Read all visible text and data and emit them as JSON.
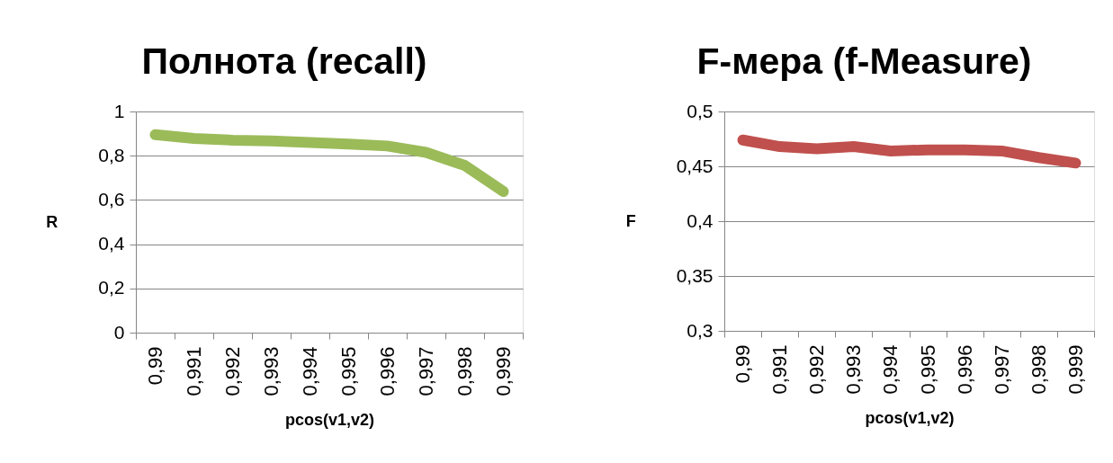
{
  "chart_data": [
    {
      "type": "line",
      "title": "Полнота (recall)",
      "xlabel": "pcos(v1,v2)",
      "ylabel": "R",
      "categories": [
        "0,99",
        "0,991",
        "0,992",
        "0,993",
        "0,994",
        "0,995",
        "0,996",
        "0,997",
        "0,998",
        "0,999"
      ],
      "series": [
        {
          "color": "#9bbb59",
          "values": [
            0.895,
            0.878,
            0.87,
            0.867,
            0.86,
            0.853,
            0.844,
            0.815,
            0.756,
            0.638
          ]
        }
      ],
      "ylim": [
        0,
        1
      ],
      "yticks": [
        0,
        {
          "value": 0.2,
          "label": "0,2"
        },
        {
          "value": 0.4,
          "label": "0,4"
        },
        {
          "value": 0.6,
          "label": "0,6"
        },
        {
          "value": 0.8,
          "label": "0,8"
        },
        1
      ],
      "grid": "y",
      "line_style": "solid"
    },
    {
      "type": "line",
      "title": "F-мера (f-Measure)",
      "xlabel": "pcos(v1,v2)",
      "ylabel": "F",
      "categories": [
        "0,99",
        "0,991",
        "0,992",
        "0,993",
        "0,994",
        "0,995",
        "0,996",
        "0,997",
        "0,998",
        "0,999"
      ],
      "series": [
        {
          "color": "#c0504d",
          "values": [
            0.474,
            0.468,
            0.466,
            0.468,
            0.464,
            0.465,
            0.465,
            0.464,
            0.458,
            0.453
          ]
        }
      ],
      "ylim": [
        0.3,
        0.5
      ],
      "yticks": [
        {
          "value": 0.3,
          "label": "0,3"
        },
        {
          "value": 0.35,
          "label": "0,35"
        },
        {
          "value": 0.4,
          "label": "0,4"
        },
        {
          "value": 0.45,
          "label": "0,45"
        },
        {
          "value": 0.5,
          "label": "0,5"
        }
      ],
      "grid": "y",
      "line_style": "solid"
    }
  ]
}
